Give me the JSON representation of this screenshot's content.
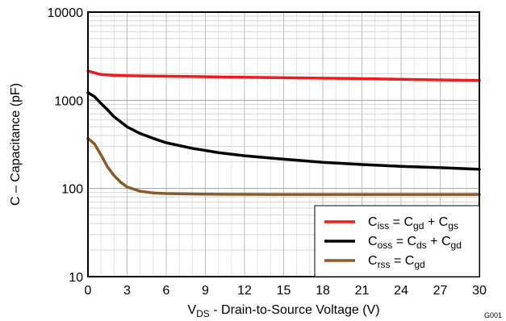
{
  "chart_data": {
    "type": "line",
    "xlabel": {
      "main": "V",
      "sub": "DS",
      "rest": " - Drain-to-Source Voltage (V)"
    },
    "ylabel": "C – Capacitance  (pF)",
    "figure_id": "G001",
    "xlim": [
      0,
      30
    ],
    "ylim": [
      10,
      10000
    ],
    "yscale": "log",
    "grid": true,
    "legend_position": "bottom-right",
    "x_ticks": [
      0,
      3,
      6,
      9,
      12,
      15,
      18,
      21,
      24,
      27,
      30
    ],
    "x_tick_labels": [
      "0",
      "3",
      "6",
      "9",
      "12",
      "15",
      "18",
      "21",
      "24",
      "27",
      "30"
    ],
    "y_ticks": [
      10,
      100,
      1000,
      10000
    ],
    "y_tick_labels": [
      "10",
      "100",
      "1000",
      "10000"
    ],
    "series": [
      {
        "name": "Ciss = Cgd + Cgs",
        "legend": [
          {
            "t": "C"
          },
          {
            "t": "iss",
            "sub": true
          },
          {
            "t": " = C"
          },
          {
            "t": "gd",
            "sub": true
          },
          {
            "t": " + C"
          },
          {
            "t": "gs",
            "sub": true
          }
        ],
        "color": "#ee1c1c",
        "x": [
          0,
          0.5,
          1,
          2,
          3,
          5,
          8,
          10,
          15,
          20,
          25,
          30
        ],
        "y": [
          2150,
          2050,
          1960,
          1920,
          1900,
          1880,
          1860,
          1840,
          1800,
          1770,
          1720,
          1680
        ]
      },
      {
        "name": "Coss = Cds + Cgd",
        "legend": [
          {
            "t": "C"
          },
          {
            "t": "oss",
            "sub": true
          },
          {
            "t": " = C"
          },
          {
            "t": "ds",
            "sub": true
          },
          {
            "t": " + C"
          },
          {
            "t": "gd",
            "sub": true
          }
        ],
        "color": "#000000",
        "x": [
          0,
          0.5,
          1,
          1.5,
          2,
          3,
          4,
          5,
          6,
          8,
          10,
          12,
          15,
          18,
          21,
          24,
          27,
          30
        ],
        "y": [
          1220,
          1100,
          920,
          780,
          650,
          500,
          420,
          370,
          330,
          285,
          255,
          235,
          215,
          198,
          187,
          178,
          172,
          165
        ]
      },
      {
        "name": "Crss = Cgd",
        "legend": [
          {
            "t": "C"
          },
          {
            "t": "rss",
            "sub": true
          },
          {
            "t": " =  C"
          },
          {
            "t": "gd",
            "sub": true
          }
        ],
        "color": "#8b5a2b",
        "x": [
          0,
          0.5,
          1,
          1.5,
          2,
          2.5,
          3,
          4,
          5,
          6,
          8,
          10,
          15,
          20,
          25,
          30
        ],
        "y": [
          370,
          320,
          240,
          175,
          140,
          118,
          104,
          93,
          89,
          87.5,
          86.5,
          86,
          85.5,
          85.5,
          85.5,
          85.5
        ]
      }
    ]
  }
}
